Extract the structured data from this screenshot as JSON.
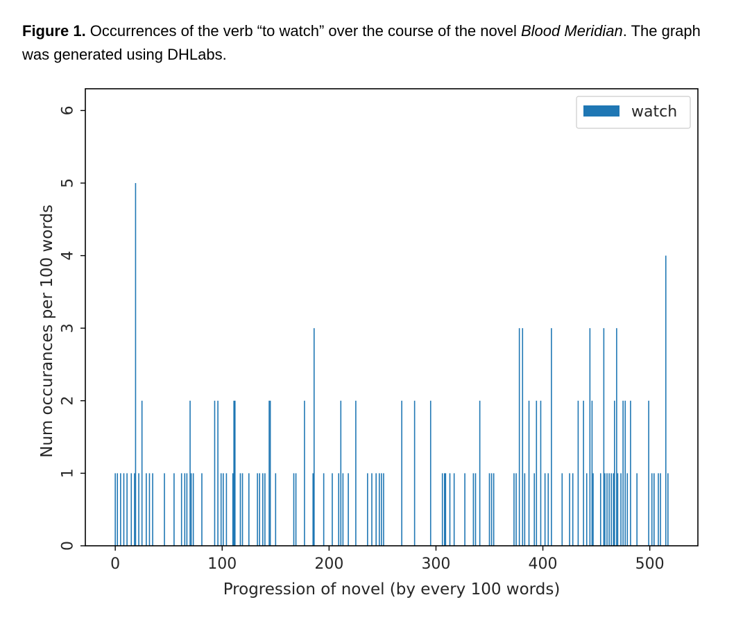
{
  "caption": {
    "label": "Figure 1.",
    "text_before": " Occurrences of the verb “to watch” over the course of the novel ",
    "italic": "Blood Meridian",
    "text_after": ". The graph was generated using DHLabs."
  },
  "chart_data": {
    "type": "bar",
    "title": "",
    "xlabel": "Progression of novel (by every 100 words)",
    "ylabel": "Num occurances per 100 words",
    "xlim": [
      -28,
      545
    ],
    "ylim": [
      0,
      6.3
    ],
    "xticks": [
      0,
      100,
      200,
      300,
      400,
      500
    ],
    "yticks": [
      0,
      1,
      2,
      3,
      4,
      5,
      6
    ],
    "grid": false,
    "legend": {
      "position": "top-right",
      "entries": [
        "watch"
      ]
    },
    "color": "#1f77b4",
    "series": [
      {
        "name": "watch",
        "x": [
          0,
          2,
          5,
          8,
          11,
          15,
          18,
          19,
          22,
          25,
          29,
          32,
          35,
          46,
          55,
          62,
          65,
          67,
          70,
          71,
          73,
          81,
          93,
          96,
          99,
          101,
          104,
          110,
          111,
          112,
          117,
          119,
          125,
          133,
          135,
          138,
          140,
          144,
          145,
          150,
          167,
          169,
          177,
          185,
          186,
          195,
          203,
          209,
          211,
          213,
          218,
          225,
          236,
          240,
          244,
          247,
          249,
          251,
          268,
          280,
          295,
          306,
          308,
          309,
          313,
          317,
          327,
          335,
          337,
          341,
          350,
          352,
          354,
          373,
          375,
          378,
          381,
          383,
          387,
          392,
          394,
          398,
          402,
          405,
          408,
          418,
          425,
          428,
          433,
          438,
          441,
          444,
          446,
          447,
          454,
          457,
          458,
          460,
          462,
          464,
          466,
          467,
          469,
          470,
          473,
          475,
          477,
          479,
          482,
          488,
          499,
          502,
          504,
          508,
          510,
          515,
          517
        ],
        "values": [
          1,
          1,
          1,
          1,
          1,
          1,
          1,
          5,
          1,
          2,
          1,
          1,
          1,
          1,
          1,
          1,
          1,
          1,
          2,
          1,
          1,
          1,
          2,
          2,
          1,
          1,
          1,
          1,
          2,
          2,
          1,
          1,
          1,
          1,
          1,
          1,
          1,
          2,
          2,
          1,
          1,
          1,
          2,
          1,
          3,
          1,
          1,
          1,
          2,
          1,
          1,
          2,
          1,
          1,
          1,
          1,
          1,
          1,
          2,
          2,
          2,
          1,
          1,
          1,
          1,
          1,
          1,
          1,
          1,
          2,
          1,
          1,
          1,
          1,
          1,
          3,
          3,
          1,
          2,
          1,
          2,
          2,
          1,
          1,
          3,
          1,
          1,
          1,
          2,
          2,
          1,
          3,
          2,
          1,
          1,
          3,
          1,
          1,
          1,
          1,
          1,
          2,
          3,
          1,
          1,
          2,
          2,
          1,
          2,
          1,
          2,
          1,
          1,
          1,
          1,
          4,
          1
        ]
      }
    ]
  }
}
